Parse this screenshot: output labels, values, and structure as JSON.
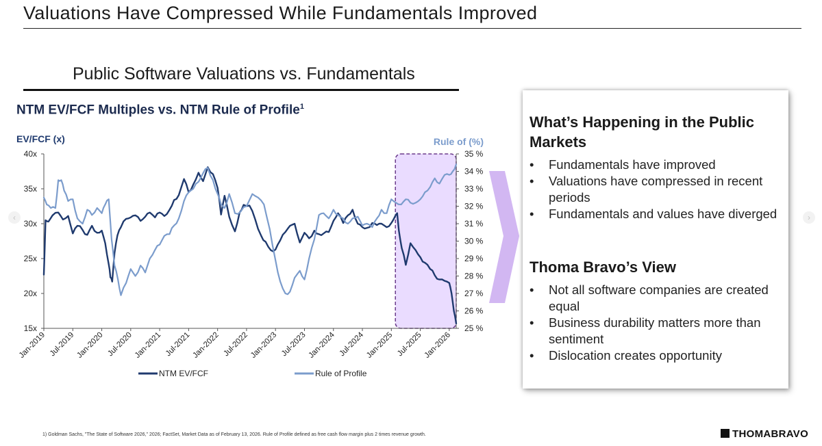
{
  "page": {
    "title": "Valuations Have Compressed While Fundamentals Improved",
    "section_title": "Public Software Valuations vs. Fundamentals",
    "chart_heading": "NTM EV/FCF Multiples vs. NTM Rule of Profile",
    "chart_heading_sup": "1",
    "footnote": "1) Goldman Sachs, \"The State of Software 2026,\" 2026; FactSet, Market Data as of February 13, 2026. Rule of Profile defined as free cash flow margin plus 2 times revenue growth.",
    "brand": "THOMABRAVO",
    "nav_prev": "‹",
    "nav_next": "›"
  },
  "panel": {
    "heading1": "What’s Happening in the Public Markets",
    "bullets1": [
      "Fundamentals have improved",
      "Valuations have compressed in recent periods",
      "Fundamentals and values have diverged"
    ],
    "heading2": "Thoma Bravo’s View",
    "bullets2": [
      "Not all software companies are created equal",
      "Business durability matters more than sentiment",
      "Dislocation creates opportunity"
    ]
  },
  "chart_data": {
    "type": "line",
    "title": "NTM EV/FCF Multiples vs. NTM Rule of Profile",
    "ylabel_left": "EV/FCF (x)",
    "ylabel_right": "Rule of (%)",
    "ylim_left": [
      15,
      40
    ],
    "ylim_right": [
      25,
      35
    ],
    "yticks_left": [
      "15x",
      "20x",
      "25x",
      "30x",
      "35x",
      "40x"
    ],
    "yticks_right": [
      "25 %",
      "26 %",
      "27 %",
      "28 %",
      "29 %",
      "30 %",
      "31 %",
      "32 %",
      "33 %",
      "34 %",
      "35 %"
    ],
    "x_categories": [
      "Jan-2019",
      "Jul-2019",
      "Jan-2020",
      "Jul-2020",
      "Jan-2021",
      "Jul-2021",
      "Jan-2022",
      "Jul-2022",
      "Jan-2023",
      "Jul-2023",
      "Jan-2024",
      "Jul-2024",
      "Jan-2025",
      "Jul-2025",
      "Jan-2026"
    ],
    "x_start": 2019.0,
    "x_end": 2026.12,
    "highlight": {
      "x_start": 2025.07,
      "x_end": 2026.12
    },
    "series": [
      {
        "name": "NTM EV/FCF",
        "axis": "left",
        "color": "#1f3a6e",
        "x": [
          2019.0,
          2019.03,
          2019.08,
          2019.15,
          2019.25,
          2019.33,
          2019.42,
          2019.5,
          2019.58,
          2019.67,
          2019.75,
          2019.83,
          2019.92,
          2020.0,
          2020.06,
          2020.12,
          2020.15,
          2020.18,
          2020.22,
          2020.27,
          2020.33,
          2020.42,
          2020.5,
          2020.58,
          2020.67,
          2020.75,
          2020.83,
          2020.92,
          2021.0,
          2021.08,
          2021.17,
          2021.25,
          2021.33,
          2021.42,
          2021.5,
          2021.58,
          2021.67,
          2021.75,
          2021.83,
          2021.92,
          2022.0,
          2022.06,
          2022.12,
          2022.2,
          2022.3,
          2022.38,
          2022.45,
          2022.55,
          2022.65,
          2022.75,
          2022.83,
          2022.92,
          2023.0,
          2023.08,
          2023.17,
          2023.25,
          2023.33,
          2023.42,
          2023.5,
          2023.58,
          2023.67,
          2023.75,
          2023.83,
          2023.92,
          2024.0,
          2024.08,
          2024.17,
          2024.25,
          2024.33,
          2024.42,
          2024.5,
          2024.58,
          2024.67,
          2024.75,
          2024.83,
          2024.92,
          2025.0,
          2025.05,
          2025.1,
          2025.13,
          2025.18,
          2025.25,
          2025.33,
          2025.42,
          2025.5,
          2025.58,
          2025.67,
          2025.75,
          2025.83,
          2025.92,
          2026.0,
          2026.04,
          2026.08,
          2026.12
        ],
        "values": [
          22.7,
          30.5,
          30.3,
          31.2,
          31.6,
          30.6,
          31.1,
          28.6,
          29.7,
          29.1,
          28.4,
          29.7,
          28.7,
          29.0,
          27.2,
          24.2,
          22.3,
          21.7,
          25.8,
          28.3,
          29.5,
          30.7,
          30.9,
          31.2,
          30.4,
          31.0,
          31.6,
          30.9,
          31.6,
          31.1,
          32.0,
          33.4,
          34.1,
          36.4,
          34.5,
          35.6,
          37.3,
          36.1,
          38.1,
          37.1,
          35.1,
          31.3,
          34.0,
          31.0,
          28.9,
          31.6,
          32.7,
          32.6,
          30.6,
          28.3,
          27.4,
          26.2,
          26.3,
          27.6,
          28.8,
          29.7,
          30.0,
          27.3,
          28.7,
          27.9,
          29.0,
          28.5,
          28.6,
          28.8,
          30.4,
          31.5,
          30.1,
          31.2,
          32.0,
          30.0,
          29.5,
          29.4,
          30.1,
          29.8,
          30.0,
          29.5,
          30.1,
          30.8,
          31.5,
          29.0,
          26.5,
          24.1,
          27.2,
          26.2,
          25.2,
          24.4,
          23.5,
          22.6,
          22.0,
          21.8,
          21.5,
          20.0,
          17.5,
          15.7
        ]
      },
      {
        "name": "Rule of Profile",
        "axis": "right",
        "color": "#7b9ccc",
        "x": [
          2019.0,
          2019.05,
          2019.12,
          2019.2,
          2019.25,
          2019.3,
          2019.35,
          2019.42,
          2019.5,
          2019.58,
          2019.67,
          2019.75,
          2019.83,
          2019.92,
          2020.0,
          2020.06,
          2020.12,
          2020.17,
          2020.22,
          2020.28,
          2020.33,
          2020.42,
          2020.5,
          2020.58,
          2020.67,
          2020.75,
          2020.83,
          2020.92,
          2021.0,
          2021.08,
          2021.17,
          2021.25,
          2021.33,
          2021.42,
          2021.5,
          2021.58,
          2021.67,
          2021.75,
          2021.83,
          2021.92,
          2022.0,
          2022.06,
          2022.12,
          2022.2,
          2022.3,
          2022.4,
          2022.5,
          2022.6,
          2022.7,
          2022.8,
          2022.9,
          2023.0,
          2023.08,
          2023.17,
          2023.25,
          2023.33,
          2023.42,
          2023.5,
          2023.58,
          2023.67,
          2023.75,
          2023.83,
          2023.92,
          2024.0,
          2024.08,
          2024.17,
          2024.25,
          2024.33,
          2024.42,
          2024.5,
          2024.58,
          2024.67,
          2024.75,
          2024.83,
          2024.92,
          2025.0,
          2025.08,
          2025.17,
          2025.25,
          2025.33,
          2025.42,
          2025.5,
          2025.58,
          2025.67,
          2025.75,
          2025.83,
          2025.92,
          2026.0,
          2026.06,
          2026.12
        ],
        "values": [
          32.5,
          32.1,
          31.9,
          31.9,
          33.5,
          33.5,
          32.9,
          32.3,
          32.4,
          31.3,
          31.0,
          31.8,
          31.5,
          31.9,
          31.6,
          32.1,
          32.4,
          30.1,
          28.6,
          27.8,
          26.9,
          27.6,
          28.4,
          28.0,
          28.6,
          28.2,
          29.0,
          29.5,
          29.8,
          30.3,
          30.4,
          30.9,
          31.3,
          32.3,
          32.8,
          33.0,
          33.4,
          33.9,
          34.2,
          33.5,
          32.7,
          32.1,
          31.9,
          32.7,
          31.6,
          31.7,
          32.0,
          32.7,
          32.5,
          32.1,
          30.7,
          28.9,
          27.7,
          27.0,
          27.1,
          27.9,
          28.3,
          27.8,
          29.0,
          30.1,
          31.5,
          31.6,
          31.3,
          31.8,
          31.5,
          31.3,
          31.0,
          31.3,
          31.4,
          30.9,
          31.0,
          30.8,
          31.3,
          31.8,
          31.6,
          32.4,
          32.2,
          32.1,
          32.4,
          32.2,
          32.2,
          32.4,
          32.8,
          33.1,
          33.6,
          33.3,
          33.8,
          33.8,
          34.0,
          34.4
        ]
      }
    ],
    "legend": [
      "NTM EV/FCF",
      "Rule of Profile"
    ],
    "legend_position": "bottom-center",
    "colors": {
      "primary": "#1f3a6e",
      "secondary": "#7b9ccc",
      "highlight_fill": "#eadcff",
      "highlight_border": "#6b3b8c",
      "chevron": "#d2b7f2"
    }
  }
}
